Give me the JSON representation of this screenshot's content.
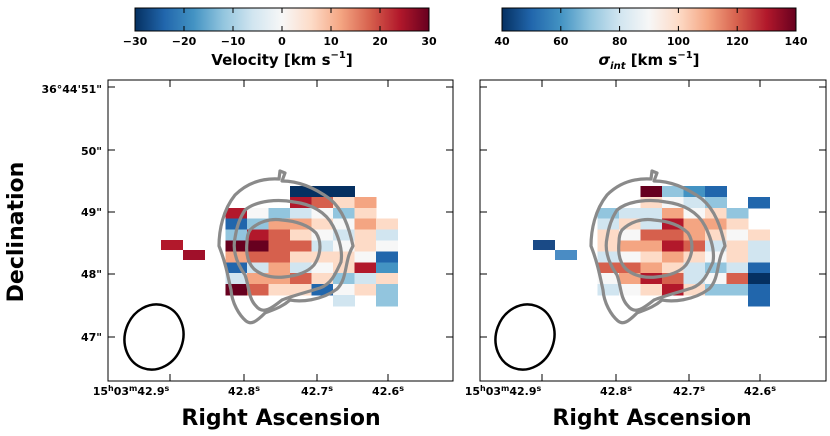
{
  "chart_data": [
    {
      "type": "heatmap",
      "name": "velocity-map",
      "colorbar": {
        "label_main": "Velocity [km s",
        "label_sup": "−1",
        "label_close": "]",
        "vmin": -30,
        "vmax": 30,
        "ticks": [
          "−30",
          "−20",
          "−10",
          "0",
          "10",
          "20",
          "30"
        ],
        "colormap": "RdBu_r"
      },
      "xlabel": "Right Ascension",
      "ylabel": "Declination",
      "xticks": [
        "15h03m42.9s",
        "42.8s",
        "42.7s",
        "42.6s"
      ],
      "yticks": [
        "36°44′51″",
        "50″",
        "49″",
        "48″",
        "47″"
      ],
      "contours": "grey outline contours overlaid",
      "beam": "ellipse lower-left"
    },
    {
      "type": "heatmap",
      "name": "dispersion-map",
      "colorbar": {
        "label_main": "σ",
        "label_sub": "int",
        "label_rest": " [km s",
        "label_sup": "−1",
        "label_close": "]",
        "vmin": 40,
        "vmax": 140,
        "ticks": [
          "40",
          "60",
          "80",
          "100",
          "120",
          "140"
        ],
        "colormap": "RdBu_r"
      },
      "xlabel": "Right Ascension",
      "xticks": [
        "15h03m42.9s",
        "42.8s",
        "42.7s",
        "42.6s"
      ],
      "contours": "grey outline contours overlaid",
      "beam": "ellipse lower-left"
    }
  ],
  "text": {
    "ytick_51": "36°44'51\"",
    "ytick_50": "50\"",
    "ytick_49": "49\"",
    "ytick_48": "48\"",
    "ytick_47": "47\"",
    "xtick_main_h": "15",
    "xtick_main_m": "03",
    "xtick_main_s": "42.9",
    "xtick_h": "h",
    "xtick_m": "m",
    "xtick_s": "s",
    "xtick_428": "42.8",
    "xtick_427": "42.7",
    "xtick_426": "42.6",
    "xlabel": "Right Ascension",
    "ylabel": "Declination"
  }
}
